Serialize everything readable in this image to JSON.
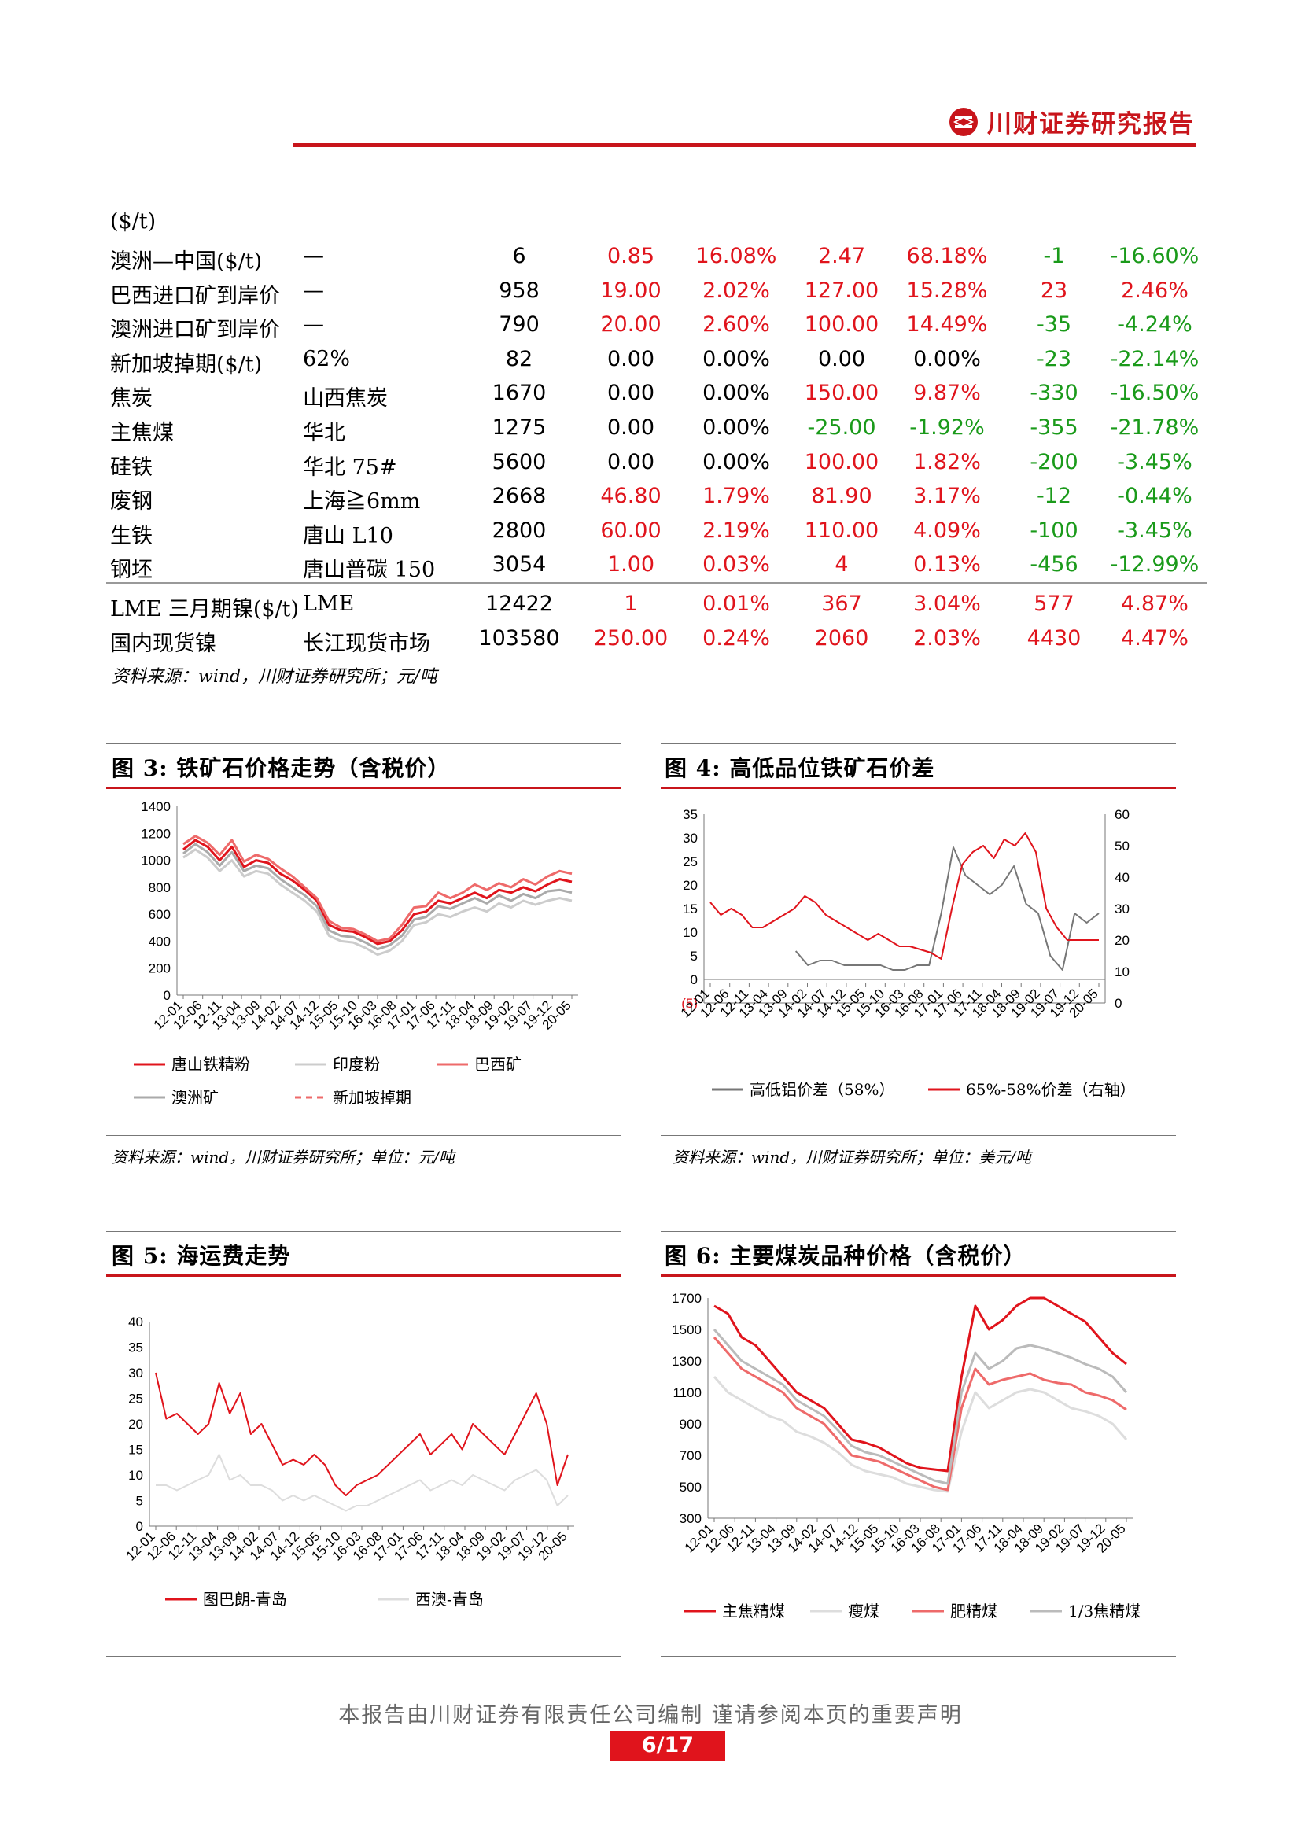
{
  "header": {
    "brand": "川财证券研究报告"
  },
  "table": {
    "unit_row": "($/t)",
    "rows": [
      {
        "name": "澳洲—中国($/t)",
        "spec": "—",
        "price": "6",
        "d1": "0.85",
        "p1": "16.08%",
        "d2": "2.47",
        "p2": "68.18%",
        "d3": "-1",
        "p3": "-16.60%",
        "c": [
          "red",
          "red",
          "red",
          "red",
          "grn",
          "grn"
        ]
      },
      {
        "name": "巴西进口矿到岸价",
        "spec": "—",
        "price": "958",
        "d1": "19.00",
        "p1": "2.02%",
        "d2": "127.00",
        "p2": "15.28%",
        "d3": "23",
        "p3": "2.46%",
        "c": [
          "red",
          "red",
          "red",
          "red",
          "red",
          "red"
        ]
      },
      {
        "name": "澳洲进口矿到岸价",
        "spec": "—",
        "price": "790",
        "d1": "20.00",
        "p1": "2.60%",
        "d2": "100.00",
        "p2": "14.49%",
        "d3": "-35",
        "p3": "-4.24%",
        "c": [
          "red",
          "red",
          "red",
          "red",
          "grn",
          "grn"
        ]
      },
      {
        "name": "新加坡掉期($/t)",
        "spec": "62%",
        "price": "82",
        "d1": "0.00",
        "p1": "0.00%",
        "d2": "0.00",
        "p2": "0.00%",
        "d3": "-23",
        "p3": "-22.14%",
        "c": [
          "blk",
          "blk",
          "blk",
          "blk",
          "grn",
          "grn"
        ]
      },
      {
        "name": "焦炭",
        "spec": "山西焦炭",
        "price": "1670",
        "d1": "0.00",
        "p1": "0.00%",
        "d2": "150.00",
        "p2": "9.87%",
        "d3": "-330",
        "p3": "-16.50%",
        "c": [
          "blk",
          "blk",
          "red",
          "red",
          "grn",
          "grn"
        ]
      },
      {
        "name": "主焦煤",
        "spec": "华北",
        "price": "1275",
        "d1": "0.00",
        "p1": "0.00%",
        "d2": "-25.00",
        "p2": "-1.92%",
        "d3": "-355",
        "p3": "-21.78%",
        "c": [
          "blk",
          "blk",
          "grn",
          "grn",
          "grn",
          "grn"
        ]
      },
      {
        "name": "硅铁",
        "spec": "华北 75#",
        "price": "5600",
        "d1": "0.00",
        "p1": "0.00%",
        "d2": "100.00",
        "p2": "1.82%",
        "d3": "-200",
        "p3": "-3.45%",
        "c": [
          "blk",
          "blk",
          "red",
          "red",
          "grn",
          "grn"
        ]
      },
      {
        "name": "废钢",
        "spec": "上海≧6mm",
        "price": "2668",
        "d1": "46.80",
        "p1": "1.79%",
        "d2": "81.90",
        "p2": "3.17%",
        "d3": "-12",
        "p3": "-0.44%",
        "c": [
          "red",
          "red",
          "red",
          "red",
          "grn",
          "grn"
        ]
      },
      {
        "name": "生铁",
        "spec": "唐山 L10",
        "price": "2800",
        "d1": "60.00",
        "p1": "2.19%",
        "d2": "110.00",
        "p2": "4.09%",
        "d3": "-100",
        "p3": "-3.45%",
        "c": [
          "red",
          "red",
          "red",
          "red",
          "grn",
          "grn"
        ]
      },
      {
        "name": "钢坯",
        "spec": "唐山普碳 150",
        "price": "3054",
        "d1": "1.00",
        "p1": "0.03%",
        "d2": "4",
        "p2": "0.13%",
        "d3": "-456",
        "p3": "-12.99%",
        "c": [
          "red",
          "red",
          "red",
          "red",
          "grn",
          "grn"
        ]
      },
      {
        "name": "LME 三月期镍($/t)",
        "spec": "LME",
        "price": "12422",
        "d1": "1",
        "p1": "0.01%",
        "d2": "367",
        "p2": "3.04%",
        "d3": "577",
        "p3": "4.87%",
        "c": [
          "red",
          "red",
          "red",
          "red",
          "red",
          "red"
        ]
      },
      {
        "name": "国内现货镍",
        "spec": "长江现货市场",
        "price": "103580",
        "d1": "250.00",
        "p1": "0.24%",
        "d2": "2060",
        "p2": "2.03%",
        "d3": "4430",
        "p3": "4.47%",
        "c": [
          "red",
          "red",
          "red",
          "red",
          "red",
          "red"
        ]
      }
    ],
    "source": "资料来源：wind，川财证券研究所；元/吨"
  },
  "x_ticks": [
    "12-01",
    "12-06",
    "12-11",
    "13-04",
    "13-09",
    "14-02",
    "14-07",
    "14-12",
    "15-05",
    "15-10",
    "16-03",
    "16-08",
    "17-01",
    "17-06",
    "17-11",
    "18-04",
    "18-09",
    "19-02",
    "19-07",
    "19-12",
    "20-05"
  ],
  "colors": {
    "accent": "#c8151b",
    "red": "#e0141c",
    "green": "#1a9a1a",
    "grey": "#777777",
    "light_grey": "#cccccc",
    "pink": "#ee6a6a"
  },
  "figures": {
    "fig3": {
      "title": "图 3: 铁矿石价格走势（含税价）",
      "source": "资料来源：wind，川财证券研究所；单位：元/吨"
    },
    "fig4": {
      "title": "图 4: 高低品位铁矿石价差",
      "source": "资料来源：wind，川财证券研究所；单位：美元/吨"
    },
    "fig5": {
      "title": "图 5: 海运费走势"
    },
    "fig6": {
      "title": "图 6: 主要煤炭品种价格（含税价）"
    }
  },
  "chart_data": [
    {
      "id": "fig3",
      "type": "line",
      "ylim": [
        0,
        1400
      ],
      "yticks": [
        0,
        200,
        400,
        600,
        800,
        1000,
        1200,
        1400
      ],
      "legend_position": "bottom",
      "series": [
        {
          "name": "唐山铁精粉",
          "color": "#e0141c",
          "width": 3,
          "values": [
            1080,
            1150,
            1100,
            1000,
            1100,
            950,
            1000,
            980,
            900,
            850,
            780,
            700,
            520,
            480,
            470,
            430,
            380,
            400,
            480,
            600,
            620,
            700,
            680,
            720,
            760,
            720,
            780,
            760,
            800,
            770,
            820,
            860,
            840
          ]
        },
        {
          "name": "印度粉",
          "color": "#cccccc",
          "width": 3,
          "values": [
            1020,
            1080,
            1020,
            920,
            1000,
            880,
            920,
            900,
            820,
            760,
            700,
            620,
            440,
            400,
            390,
            350,
            300,
            330,
            400,
            520,
            540,
            600,
            580,
            620,
            650,
            620,
            680,
            650,
            700,
            670,
            700,
            720,
            700
          ]
        },
        {
          "name": "巴西矿",
          "color": "#ee6a6a",
          "width": 3,
          "values": [
            1120,
            1180,
            1130,
            1040,
            1150,
            990,
            1040,
            1010,
            940,
            880,
            800,
            720,
            550,
            500,
            490,
            450,
            400,
            420,
            520,
            650,
            660,
            760,
            720,
            760,
            820,
            780,
            830,
            800,
            860,
            820,
            880,
            920,
            900
          ]
        },
        {
          "name": "澳洲矿",
          "color": "#aaaaaa",
          "width": 3,
          "values": [
            1050,
            1120,
            1060,
            960,
            1060,
            920,
            960,
            940,
            860,
            800,
            740,
            660,
            480,
            440,
            430,
            390,
            340,
            370,
            440,
            560,
            580,
            660,
            640,
            680,
            720,
            680,
            740,
            700,
            750,
            720,
            770,
            780,
            760
          ]
        },
        {
          "name": "新加坡掉期",
          "color": "#ee6a6a",
          "width": 2,
          "dash": "8,6",
          "values": []
        }
      ]
    },
    {
      "id": "fig4",
      "type": "line",
      "ylim": [
        -5,
        35
      ],
      "yticks": [
        -5,
        0,
        5,
        10,
        15,
        20,
        25,
        30,
        35
      ],
      "ylim_right": [
        0,
        60
      ],
      "yticks_right": [
        0,
        10,
        20,
        30,
        40,
        50,
        60
      ],
      "legend_position": "bottom",
      "series": [
        {
          "name": "高低铝价差（58%）",
          "axis": "left",
          "color": "#777777",
          "start": 0.22,
          "values": [
            6,
            3,
            4,
            4,
            3,
            3,
            3,
            3,
            2,
            2,
            3,
            3,
            14,
            28,
            22,
            20,
            18,
            20,
            24,
            16,
            14,
            5,
            2,
            14,
            12,
            14
          ]
        },
        {
          "name": "65%-58%价差（右轴）",
          "axis": "right",
          "color": "#e0141c",
          "values": [
            32,
            28,
            30,
            28,
            24,
            24,
            26,
            28,
            30,
            34,
            32,
            28,
            26,
            24,
            22,
            20,
            22,
            20,
            18,
            18,
            17,
            16,
            14,
            30,
            44,
            48,
            50,
            46,
            52,
            50,
            54,
            48,
            30,
            24,
            20,
            20,
            20,
            20
          ]
        }
      ]
    },
    {
      "id": "fig5",
      "type": "line",
      "ylim": [
        0,
        40
      ],
      "yticks": [
        0,
        5,
        10,
        15,
        20,
        25,
        30,
        35,
        40
      ],
      "legend_position": "bottom",
      "series": [
        {
          "name": "图巴朗-青岛",
          "color": "#e0141c",
          "values": [
            30,
            21,
            22,
            20,
            18,
            20,
            28,
            22,
            26,
            18,
            20,
            16,
            12,
            13,
            12,
            14,
            12,
            8,
            6,
            8,
            9,
            10,
            12,
            14,
            16,
            18,
            14,
            16,
            18,
            15,
            20,
            18,
            16,
            14,
            18,
            22,
            26,
            20,
            8,
            14
          ]
        },
        {
          "name": "西澳-青岛",
          "color": "#dddddd",
          "values": [
            8,
            8,
            7,
            8,
            9,
            10,
            14,
            9,
            10,
            8,
            8,
            7,
            5,
            6,
            5,
            6,
            5,
            4,
            3,
            4,
            4,
            5,
            6,
            7,
            8,
            9,
            7,
            8,
            9,
            8,
            10,
            9,
            8,
            7,
            9,
            10,
            11,
            9,
            4,
            6
          ]
        }
      ]
    },
    {
      "id": "fig6",
      "type": "line",
      "ylim": [
        300,
        1700
      ],
      "yticks": [
        300,
        500,
        700,
        900,
        1100,
        1300,
        1500,
        1700
      ],
      "legend_position": "bottom",
      "series": [
        {
          "name": "主焦精煤",
          "color": "#e0141c",
          "width": 3,
          "values": [
            1650,
            1600,
            1450,
            1400,
            1300,
            1200,
            1100,
            1050,
            1000,
            900,
            800,
            780,
            750,
            700,
            650,
            620,
            610,
            600,
            1200,
            1650,
            1500,
            1560,
            1650,
            1700,
            1700,
            1650,
            1600,
            1550,
            1450,
            1350,
            1280
          ]
        },
        {
          "name": "瘦煤",
          "color": "#dddddd",
          "width": 3,
          "values": [
            1200,
            1100,
            1050,
            1000,
            950,
            920,
            850,
            820,
            780,
            720,
            640,
            600,
            580,
            560,
            520,
            500,
            480,
            470,
            850,
            1100,
            1000,
            1050,
            1100,
            1120,
            1100,
            1050,
            1000,
            980,
            950,
            900,
            800
          ]
        },
        {
          "name": "肥精煤",
          "color": "#ee6a6a",
          "width": 3,
          "values": [
            1450,
            1350,
            1250,
            1200,
            1150,
            1100,
            1000,
            950,
            900,
            800,
            700,
            680,
            660,
            620,
            580,
            540,
            500,
            480,
            1000,
            1250,
            1150,
            1180,
            1200,
            1220,
            1180,
            1160,
            1150,
            1100,
            1080,
            1050,
            990
          ]
        },
        {
          "name": "1/3焦精煤",
          "color": "#bbbbbb",
          "width": 3,
          "values": [
            1500,
            1400,
            1300,
            1250,
            1200,
            1150,
            1050,
            1000,
            950,
            860,
            760,
            720,
            700,
            660,
            620,
            580,
            540,
            520,
            1100,
            1350,
            1250,
            1300,
            1380,
            1400,
            1380,
            1350,
            1320,
            1280,
            1250,
            1200,
            1100
          ]
        }
      ]
    }
  ],
  "footer": {
    "note": "本报告由川财证券有限责任公司编制 谨请参阅本页的重要声明",
    "page": "6/17"
  }
}
